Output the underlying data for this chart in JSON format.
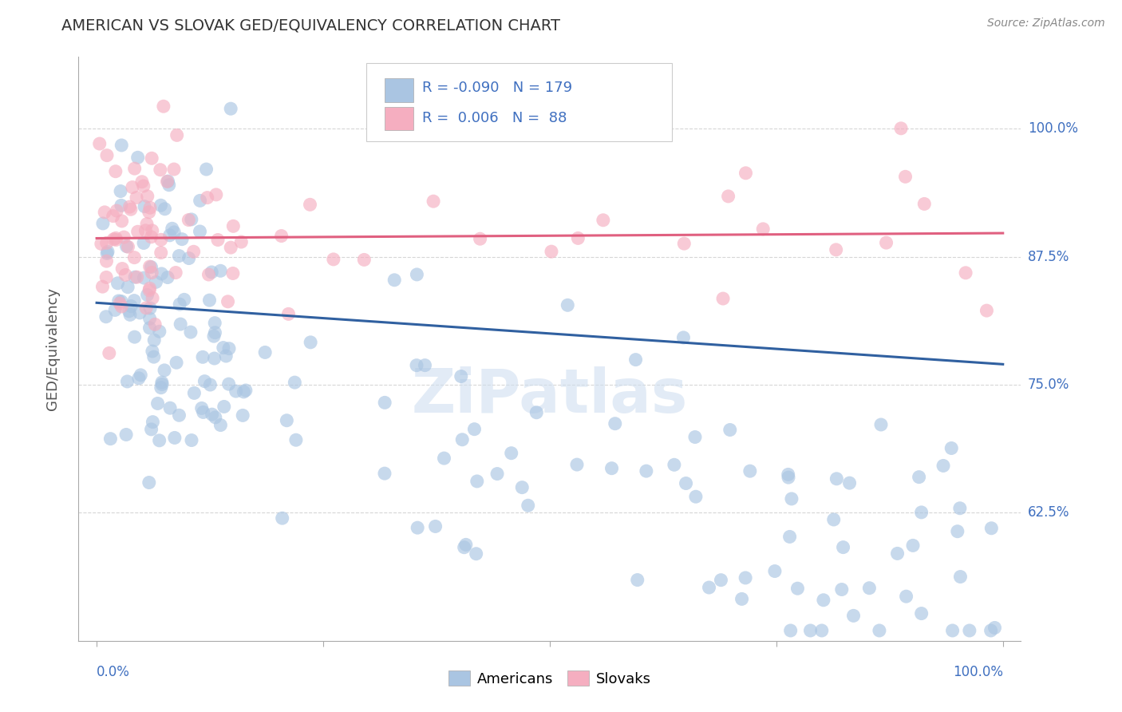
{
  "title": "AMERICAN VS SLOVAK GED/EQUIVALENCY CORRELATION CHART",
  "source": "Source: ZipAtlas.com",
  "ylabel": "GED/Equivalency",
  "ytick_labels": [
    "62.5%",
    "75.0%",
    "87.5%",
    "100.0%"
  ],
  "ytick_values": [
    0.625,
    0.75,
    0.875,
    1.0
  ],
  "xlim": [
    -0.02,
    1.02
  ],
  "ylim": [
    0.5,
    1.07
  ],
  "legend_blue_label": "Americans",
  "legend_pink_label": "Slovaks",
  "blue_R": "-0.090",
  "blue_N": "179",
  "pink_R": " 0.006",
  "pink_N": " 88",
  "blue_color": "#aac5e2",
  "pink_color": "#f5aec0",
  "blue_line_color": "#3060a0",
  "pink_line_color": "#e06080",
  "title_color": "#333333",
  "source_color": "#888888",
  "label_color": "#4070c0",
  "watermark_color": "#d0dff0",
  "grid_color": "#cccccc",
  "background_color": "#ffffff",
  "blue_trendline_y0": 0.83,
  "blue_trendline_y1": 0.77,
  "pink_trendline_y0": 0.893,
  "pink_trendline_y1": 0.898
}
